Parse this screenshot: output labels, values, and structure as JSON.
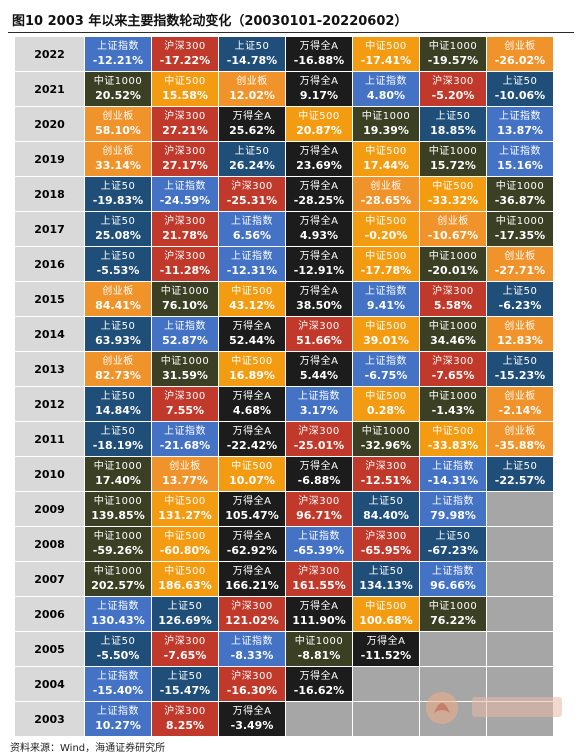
{
  "title": "图10 2003 年以来主要指数轮动变化（20030101-20220602）",
  "source": "资料来源：Wind，海通证券研究所",
  "colors": {
    "上证指数": "#4472c4",
    "沪深300": "#c0392b",
    "上证50": "#1f4e79",
    "万得全A": "#1c1c1c",
    "中证500": "#f39c12",
    "中证1000": "#3b3f24",
    "创业板": "#f0932b"
  },
  "rows": [
    {
      "year": "2022",
      "cells": [
        {
          "name": "上证指数",
          "value": "-12.21%"
        },
        {
          "name": "沪深300",
          "value": "-17.22%"
        },
        {
          "name": "上证50",
          "value": "-14.78%"
        },
        {
          "name": "万得全A",
          "value": "-16.88%"
        },
        {
          "name": "中证500",
          "value": "-17.41%"
        },
        {
          "name": "中证1000",
          "value": "-19.57%"
        },
        {
          "name": "创业板",
          "value": "-26.02%"
        }
      ]
    },
    {
      "year": "2021",
      "cells": [
        {
          "name": "中证1000",
          "value": "20.52%"
        },
        {
          "name": "中证500",
          "value": "15.58%"
        },
        {
          "name": "创业板",
          "value": "12.02%"
        },
        {
          "name": "万得全A",
          "value": "9.17%"
        },
        {
          "name": "上证指数",
          "value": "4.80%"
        },
        {
          "name": "沪深300",
          "value": "-5.20%"
        },
        {
          "name": "上证50",
          "value": "-10.06%"
        }
      ]
    },
    {
      "year": "2020",
      "cells": [
        {
          "name": "创业板",
          "value": "58.10%"
        },
        {
          "name": "沪深300",
          "value": "27.21%"
        },
        {
          "name": "万得全A",
          "value": "25.62%"
        },
        {
          "name": "中证500",
          "value": "20.87%"
        },
        {
          "name": "中证1000",
          "value": "19.39%"
        },
        {
          "name": "上证50",
          "value": "18.85%"
        },
        {
          "name": "上证指数",
          "value": "13.87%"
        }
      ]
    },
    {
      "year": "2019",
      "cells": [
        {
          "name": "创业板",
          "value": "33.14%"
        },
        {
          "name": "沪深300",
          "value": "27.17%"
        },
        {
          "name": "上证50",
          "value": "26.24%"
        },
        {
          "name": "万得全A",
          "value": "23.69%"
        },
        {
          "name": "中证500",
          "value": "17.44%"
        },
        {
          "name": "中证1000",
          "value": "15.72%"
        },
        {
          "name": "上证指数",
          "value": "15.16%"
        }
      ]
    },
    {
      "year": "2018",
      "cells": [
        {
          "name": "上证50",
          "value": "-19.83%"
        },
        {
          "name": "上证指数",
          "value": "-24.59%"
        },
        {
          "name": "沪深300",
          "value": "-25.31%"
        },
        {
          "name": "万得全A",
          "value": "-28.25%"
        },
        {
          "name": "创业板",
          "value": "-28.65%"
        },
        {
          "name": "中证500",
          "value": "-33.32%"
        },
        {
          "name": "中证1000",
          "value": "-36.87%"
        }
      ]
    },
    {
      "year": "2017",
      "cells": [
        {
          "name": "上证50",
          "value": "25.08%"
        },
        {
          "name": "沪深300",
          "value": "21.78%"
        },
        {
          "name": "上证指数",
          "value": "6.56%"
        },
        {
          "name": "万得全A",
          "value": "4.93%"
        },
        {
          "name": "中证500",
          "value": "-0.20%"
        },
        {
          "name": "创业板",
          "value": "-10.67%"
        },
        {
          "name": "中证1000",
          "value": "-17.35%"
        }
      ]
    },
    {
      "year": "2016",
      "cells": [
        {
          "name": "上证50",
          "value": "-5.53%"
        },
        {
          "name": "沪深300",
          "value": "-11.28%"
        },
        {
          "name": "上证指数",
          "value": "-12.31%"
        },
        {
          "name": "万得全A",
          "value": "-12.91%"
        },
        {
          "name": "中证500",
          "value": "-17.78%"
        },
        {
          "name": "中证1000",
          "value": "-20.01%"
        },
        {
          "name": "创业板",
          "value": "-27.71%"
        }
      ]
    },
    {
      "year": "2015",
      "cells": [
        {
          "name": "创业板",
          "value": "84.41%"
        },
        {
          "name": "中证1000",
          "value": "76.10%"
        },
        {
          "name": "中证500",
          "value": "43.12%"
        },
        {
          "name": "万得全A",
          "value": "38.50%"
        },
        {
          "name": "上证指数",
          "value": "9.41%"
        },
        {
          "name": "沪深300",
          "value": "5.58%"
        },
        {
          "name": "上证50",
          "value": "-6.23%"
        }
      ]
    },
    {
      "year": "2014",
      "cells": [
        {
          "name": "上证50",
          "value": "63.93%"
        },
        {
          "name": "上证指数",
          "value": "52.87%"
        },
        {
          "name": "万得全A",
          "value": "52.44%"
        },
        {
          "name": "沪深300",
          "value": "51.66%"
        },
        {
          "name": "中证500",
          "value": "39.01%"
        },
        {
          "name": "中证1000",
          "value": "34.46%"
        },
        {
          "name": "创业板",
          "value": "12.83%"
        }
      ]
    },
    {
      "year": "2013",
      "cells": [
        {
          "name": "创业板",
          "value": "82.73%"
        },
        {
          "name": "中证1000",
          "value": "31.59%"
        },
        {
          "name": "中证500",
          "value": "16.89%"
        },
        {
          "name": "万得全A",
          "value": "5.44%"
        },
        {
          "name": "上证指数",
          "value": "-6.75%"
        },
        {
          "name": "沪深300",
          "value": "-7.65%"
        },
        {
          "name": "上证50",
          "value": "-15.23%"
        }
      ]
    },
    {
      "year": "2012",
      "cells": [
        {
          "name": "上证50",
          "value": "14.84%"
        },
        {
          "name": "沪深300",
          "value": "7.55%"
        },
        {
          "name": "万得全A",
          "value": "4.68%"
        },
        {
          "name": "上证指数",
          "value": "3.17%"
        },
        {
          "name": "中证500",
          "value": "0.28%"
        },
        {
          "name": "中证1000",
          "value": "-1.43%"
        },
        {
          "name": "创业板",
          "value": "-2.14%"
        }
      ]
    },
    {
      "year": "2011",
      "cells": [
        {
          "name": "上证50",
          "value": "-18.19%"
        },
        {
          "name": "上证指数",
          "value": "-21.68%"
        },
        {
          "name": "万得全A",
          "value": "-22.42%"
        },
        {
          "name": "沪深300",
          "value": "-25.01%"
        },
        {
          "name": "中证1000",
          "value": "-32.96%"
        },
        {
          "name": "中证500",
          "value": "-33.83%"
        },
        {
          "name": "创业板",
          "value": "-35.88%"
        }
      ]
    },
    {
      "year": "2010",
      "cells": [
        {
          "name": "中证1000",
          "value": "17.40%"
        },
        {
          "name": "创业板",
          "value": "13.77%"
        },
        {
          "name": "中证500",
          "value": "10.07%"
        },
        {
          "name": "万得全A",
          "value": "-6.88%"
        },
        {
          "name": "沪深300",
          "value": "-12.51%"
        },
        {
          "name": "上证指数",
          "value": "-14.31%"
        },
        {
          "name": "上证50",
          "value": "-22.57%"
        }
      ]
    },
    {
      "year": "2009",
      "cells": [
        {
          "name": "中证1000",
          "value": "139.85%"
        },
        {
          "name": "中证500",
          "value": "131.27%"
        },
        {
          "name": "万得全A",
          "value": "105.47%"
        },
        {
          "name": "沪深300",
          "value": "96.71%"
        },
        {
          "name": "上证50",
          "value": "84.40%"
        },
        {
          "name": "上证指数",
          "value": "79.98%"
        }
      ]
    },
    {
      "year": "2008",
      "cells": [
        {
          "name": "中证1000",
          "value": "-59.26%"
        },
        {
          "name": "中证500",
          "value": "-60.80%"
        },
        {
          "name": "万得全A",
          "value": "-62.92%"
        },
        {
          "name": "上证指数",
          "value": "-65.39%"
        },
        {
          "name": "沪深300",
          "value": "-65.95%"
        },
        {
          "name": "上证50",
          "value": "-67.23%"
        }
      ]
    },
    {
      "year": "2007",
      "cells": [
        {
          "name": "中证1000",
          "value": "202.57%"
        },
        {
          "name": "中证500",
          "value": "186.63%"
        },
        {
          "name": "万得全A",
          "value": "166.21%"
        },
        {
          "name": "沪深300",
          "value": "161.55%"
        },
        {
          "name": "上证50",
          "value": "134.13%"
        },
        {
          "name": "上证指数",
          "value": "96.66%"
        }
      ]
    },
    {
      "year": "2006",
      "cells": [
        {
          "name": "上证指数",
          "value": "130.43%"
        },
        {
          "name": "上证50",
          "value": "126.69%"
        },
        {
          "name": "沪深300",
          "value": "121.02%"
        },
        {
          "name": "万得全A",
          "value": "111.90%"
        },
        {
          "name": "中证500",
          "value": "100.68%"
        },
        {
          "name": "中证1000",
          "value": "76.22%"
        }
      ]
    },
    {
      "year": "2005",
      "cells": [
        {
          "name": "上证50",
          "value": "-5.50%"
        },
        {
          "name": "沪深300",
          "value": "-7.65%"
        },
        {
          "name": "上证指数",
          "value": "-8.33%"
        },
        {
          "name": "中证1000",
          "value": "-8.81%"
        },
        {
          "name": "万得全A",
          "value": "-11.52%"
        }
      ]
    },
    {
      "year": "2004",
      "cells": [
        {
          "name": "上证指数",
          "value": "-15.40%"
        },
        {
          "name": "上证50",
          "value": "-15.47%"
        },
        {
          "name": "沪深300",
          "value": "-16.30%"
        },
        {
          "name": "万得全A",
          "value": "-16.62%"
        }
      ]
    },
    {
      "year": "2003",
      "cells": [
        {
          "name": "上证指数",
          "value": "10.27%"
        },
        {
          "name": "沪深300",
          "value": "8.25%"
        },
        {
          "name": "万得全A",
          "value": "-3.49%"
        }
      ]
    }
  ]
}
